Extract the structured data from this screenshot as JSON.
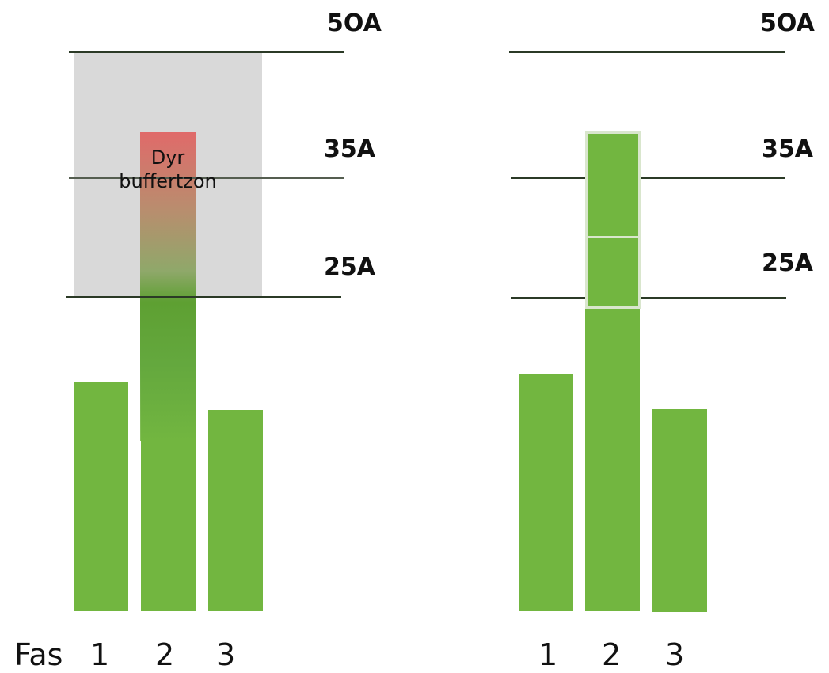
{
  "levels": {
    "a50": "5OA",
    "a35": "35A",
    "a25": "25A"
  },
  "left_panel": {
    "buffer_label": "Dyr\nbuffertzon",
    "phase_prefix": "Fas",
    "phases": [
      "1",
      "2",
      "3"
    ]
  },
  "right_panel": {
    "phases": [
      "1",
      "2",
      "3"
    ]
  },
  "colors": {
    "bar_green": "#72b640",
    "buffer_grey": "#d9d9d9",
    "buffer_red": "#e06a6a",
    "line": "#2b3a26"
  }
}
